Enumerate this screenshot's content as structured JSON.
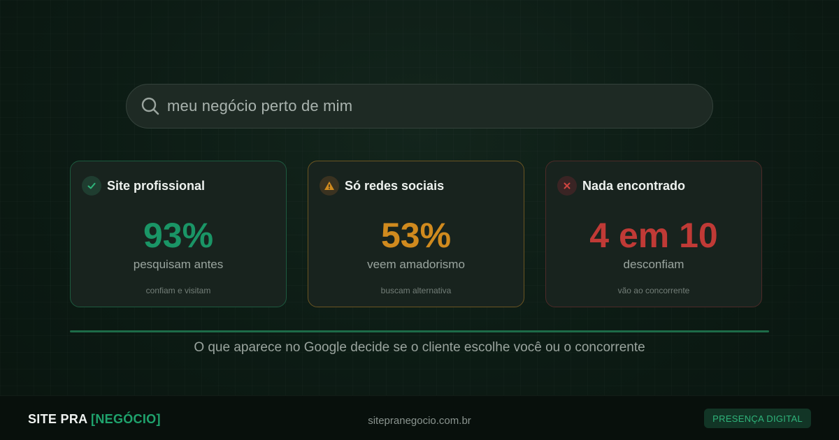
{
  "search": {
    "query": "meu negócio perto de mim",
    "icon": "search-icon"
  },
  "cards": [
    {
      "title": "Site profissional",
      "icon": "check-icon",
      "stat": "93%",
      "label": "pesquisam antes",
      "sub": "confiam e visitam",
      "color": "#1a9566"
    },
    {
      "title": "Só redes sociais",
      "icon": "warning-icon",
      "stat": "53%",
      "label": "veem amadorismo",
      "sub": "buscam alternativa",
      "color": "#d08a1e"
    },
    {
      "title": "Nada encontrado",
      "icon": "close-icon",
      "stat": "4 em 10",
      "label": "desconfiam",
      "sub": "vão ao concorrente",
      "color": "#c03a36"
    }
  ],
  "tagline": "O que aparece no Google decide se o cliente escolhe você ou o concorrente",
  "footer": {
    "brand_prefix": "SITE PRA ",
    "brand_accent": "[NEGÓCIO]",
    "domain": "sitepranegocio.com.br",
    "pill": "PRESENÇA DIGITAL"
  },
  "colors": {
    "accent_green": "#1fa36d",
    "amber": "#d08a1e",
    "red": "#c03a36",
    "background": "#0b1a14"
  }
}
